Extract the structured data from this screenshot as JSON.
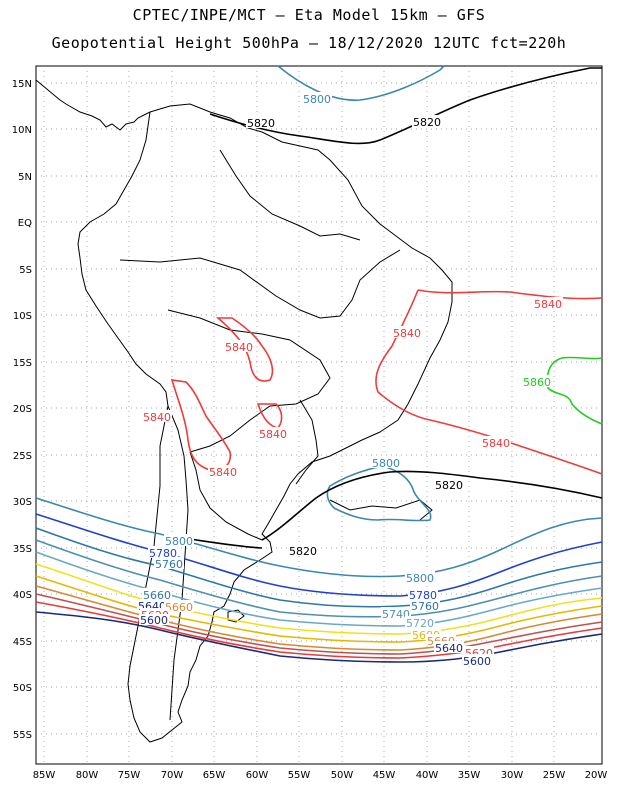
{
  "header": {
    "line1": "CPTEC/INPE/MCT –  Eta Model 15km – GFS",
    "line2": "Geopotential Height 500hPa – 18/12/2020 12UTC fct=220h"
  },
  "lat_labels": [
    "15N",
    "10N",
    "5N",
    "EQ",
    "5S",
    "10S",
    "15S",
    "20S",
    "25S",
    "30S",
    "35S",
    "40S",
    "45S",
    "50S",
    "55S"
  ],
  "lon_labels": [
    "85W",
    "80W",
    "75W",
    "70W",
    "65W",
    "60W",
    "55W",
    "50W",
    "45W",
    "40W",
    "35W",
    "30W",
    "25W",
    "20W"
  ],
  "contour_labels": {
    "c5800_top": "5800",
    "c5820_a": "5820",
    "c5820_b": "5820",
    "c5840_e": "5840",
    "c5840_mid": "5840",
    "c5840_sw1": "5840",
    "c5840_sw2": "5840",
    "c5840_sw3": "5840",
    "c5840_se": "5840",
    "c5840_bol": "5840",
    "c5860": "5860",
    "c5800_s": "5800",
    "c5820_s": "5820",
    "c5820_chile": "5820",
    "c5800_w": "5800",
    "c5780_w": "5780",
    "c5760_w": "5760",
    "c5660_w": "5660",
    "c5640_w": "5640",
    "c5620_w": "5620",
    "c5600_w": "5600",
    "c5580_w": "5660",
    "c5800_e": "5800",
    "c5780_e": "5780",
    "c5760_e": "5760",
    "c5740_e": "5740",
    "c5720_e": "5720",
    "c5680_e": "5680",
    "c5660_e": "5660",
    "c5640_e": "5640",
    "c5620_e": "5620",
    "c5600_e": "5600"
  },
  "colors": {
    "c5600": "#1a2a7a",
    "c5620": "#e83a3a",
    "c5640": "#c05050",
    "c5660": "#d88830",
    "c5680": "#e6b800",
    "c5700": "#f0e020",
    "c5720": "#6aa8c8",
    "c5740": "#4e8fb0",
    "c5760": "#2e78a8",
    "c5780": "#2040d0",
    "c5800": "#3a88b0",
    "c5820": "#000000",
    "c5840": "#ee3b3b",
    "c5860": "#22cc22",
    "coast": "#000000",
    "grid": "#888888"
  }
}
